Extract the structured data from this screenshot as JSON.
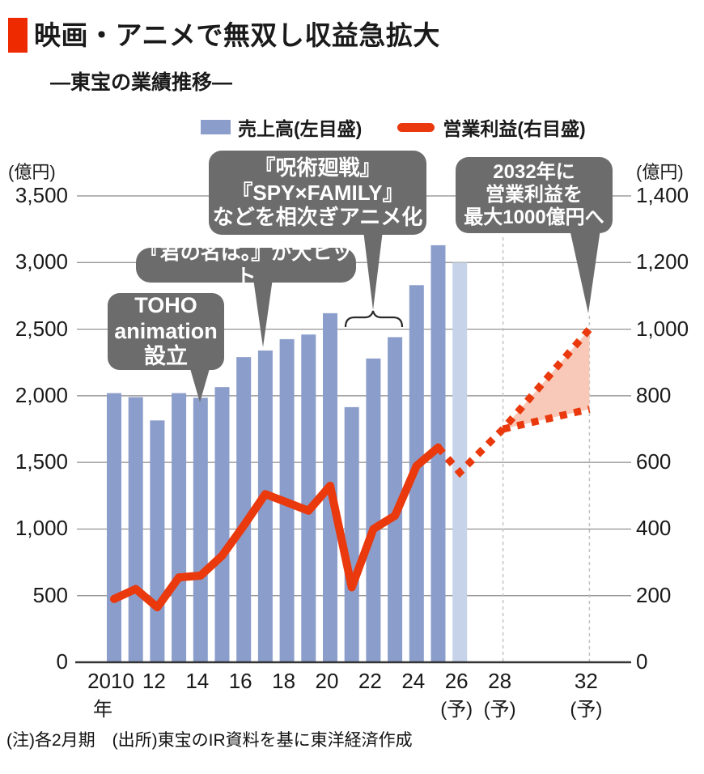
{
  "header": {
    "title": "映画・アニメで無双し収益急拡大",
    "subtitle": "―東宝の業績推移―"
  },
  "legend": [
    {
      "label": "売上高(左目盛)",
      "type": "bar"
    },
    {
      "label": "営業利益(右目盛)",
      "type": "line"
    }
  ],
  "left_axis": {
    "unit": "(億円)",
    "ticks": [
      "3,500",
      "3,000",
      "2,500",
      "2,000",
      "1,500",
      "1,000",
      "500",
      "0"
    ],
    "max": 3500
  },
  "right_axis": {
    "unit": "(億円)",
    "ticks": [
      "1,400",
      "1,200",
      "1,000",
      "800",
      "600",
      "400",
      "200",
      "0"
    ],
    "max": 1400
  },
  "x_axis": {
    "labels": [
      {
        "text": "2010",
        "sub": "年",
        "year": 2010
      },
      {
        "text": "12",
        "year": 2012
      },
      {
        "text": "14",
        "year": 2014
      },
      {
        "text": "16",
        "year": 2016
      },
      {
        "text": "18",
        "year": 2018
      },
      {
        "text": "20",
        "year": 2020
      },
      {
        "text": "22",
        "year": 2022
      },
      {
        "text": "24",
        "year": 2024
      },
      {
        "text": "26",
        "sub": "(予)",
        "year": 2026
      },
      {
        "text": "28",
        "sub": "(予)",
        "year": 2028
      },
      {
        "text": "32",
        "sub": "(予)",
        "year": 2032
      }
    ]
  },
  "annotations": [
    {
      "id": "toho",
      "lines": [
        "TOHO",
        "animation",
        "設立"
      ]
    },
    {
      "id": "kimino",
      "lines": [
        "『君の名は。』が大ヒット"
      ]
    },
    {
      "id": "jujutsu",
      "lines": [
        "『呪術廻戦』",
        "『SPY×FAMILY』",
        "などを相次ぎアニメ化"
      ]
    },
    {
      "id": "target2032",
      "lines": [
        "2032年に",
        "営業利益を",
        "最大1000億円へ"
      ]
    }
  ],
  "chart_data": {
    "type": "bar+line",
    "unit": "億円",
    "years": [
      2010,
      2011,
      2012,
      2013,
      2014,
      2015,
      2016,
      2017,
      2018,
      2019,
      2020,
      2021,
      2022,
      2023,
      2024,
      2025,
      2026
    ],
    "revenue": {
      "name": "売上高",
      "axis": "left",
      "values": [
        2020,
        1990,
        1815,
        2020,
        1985,
        2065,
        2290,
        2340,
        2425,
        2460,
        2620,
        1915,
        2280,
        2440,
        2830,
        3130,
        3000
      ],
      "forecast_years": [
        2026
      ]
    },
    "profit": {
      "name": "営業利益",
      "axis": "right",
      "values": [
        190,
        220,
        165,
        255,
        260,
        320,
        410,
        505,
        480,
        455,
        530,
        225,
        400,
        440,
        590,
        645
      ]
    },
    "profit_forecast_upper": {
      "points": [
        [
          2025,
          645
        ],
        [
          2026,
          570
        ],
        [
          2028,
          700
        ],
        [
          2032,
          1000
        ]
      ]
    },
    "profit_forecast_lower": {
      "points": [
        [
          2028,
          700
        ],
        [
          2032,
          760
        ]
      ]
    },
    "forecast_fill": {
      "points": [
        [
          2028,
          700
        ],
        [
          2032,
          1000
        ],
        [
          2032,
          760
        ]
      ]
    },
    "left_axis_range": [
      0,
      3500
    ],
    "right_axis_range": [
      0,
      1400
    ],
    "grid": true,
    "legend_position": "top"
  },
  "colors": {
    "bar": "#8b9dcb",
    "bar_forecast": "#c6d3e9",
    "line": "#e9390d",
    "forecast_fill": "#f8c9b8",
    "annotation_box": "#6c6c6c",
    "accent": "#ee2a00",
    "grid": "#8a8a8a",
    "axis": "#333333",
    "dashed_guide": "#c3c3c3"
  },
  "footer": {
    "note": "(注)各2月期　(出所)東宝のIR資料を基に東洋経済作成"
  }
}
